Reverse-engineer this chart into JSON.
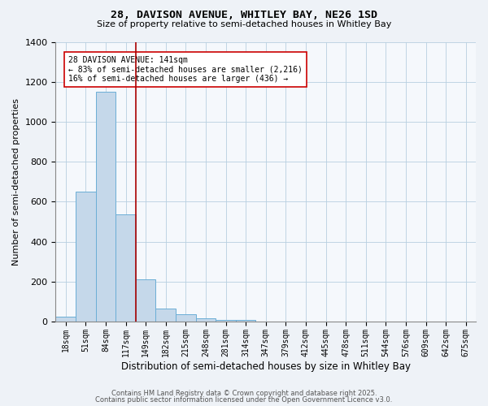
{
  "title1": "28, DAVISON AVENUE, WHITLEY BAY, NE26 1SD",
  "title2": "Size of property relative to semi-detached houses in Whitley Bay",
  "xlabel": "Distribution of semi-detached houses by size in Whitley Bay",
  "ylabel": "Number of semi-detached properties",
  "categories": [
    "18sqm",
    "51sqm",
    "84sqm",
    "117sqm",
    "149sqm",
    "182sqm",
    "215sqm",
    "248sqm",
    "281sqm",
    "314sqm",
    "347sqm",
    "379sqm",
    "412sqm",
    "445sqm",
    "478sqm",
    "511sqm",
    "544sqm",
    "576sqm",
    "609sqm",
    "642sqm",
    "675sqm"
  ],
  "values": [
    25,
    650,
    1150,
    535,
    210,
    65,
    35,
    18,
    10,
    8,
    0,
    0,
    0,
    0,
    0,
    0,
    0,
    0,
    0,
    0,
    0
  ],
  "bar_color": "#c5d8ea",
  "bar_edge_color": "#6baed6",
  "vline_x": 3.5,
  "vline_color": "#aa0000",
  "annotation_title": "28 DAVISON AVENUE: 141sqm",
  "annotation_line1": "← 83% of semi-detached houses are smaller (2,216)",
  "annotation_line2": "16% of semi-detached houses are larger (436) →",
  "ylim": [
    0,
    1400
  ],
  "yticks": [
    0,
    200,
    400,
    600,
    800,
    1000,
    1200,
    1400
  ],
  "footer1": "Contains HM Land Registry data © Crown copyright and database right 2025.",
  "footer2": "Contains public sector information licensed under the Open Government Licence v3.0.",
  "bg_color": "#eef2f7",
  "plot_bg_color": "#f5f8fc"
}
